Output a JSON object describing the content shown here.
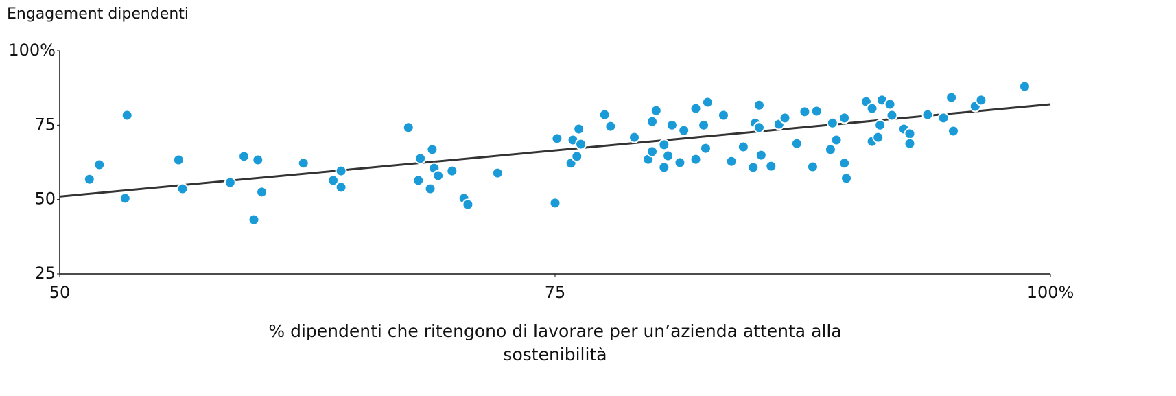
{
  "chart_data": {
    "type": "scatter",
    "ylabel": "Engagement dipendenti",
    "xlabel": "% dipendenti che ritengono di lavorare per un’azienda attenta alla sostenibilità",
    "color": "#1a9bd7",
    "trend_color": "#333333",
    "xlim": [
      50,
      100
    ],
    "ylim": [
      25,
      100
    ],
    "xticks": [
      50,
      75,
      {
        "value": 100,
        "label": "100%"
      }
    ],
    "yticks": [
      25,
      50,
      75,
      {
        "value": 100,
        "label": "100%"
      }
    ],
    "x": [
      51.5,
      52.0,
      53.4,
      53.3,
      56.0,
      56.2,
      58.6,
      59.3,
      60.0,
      59.8,
      60.2,
      62.3,
      63.8,
      64.2,
      64.2,
      67.6,
      68.2,
      68.1,
      68.8,
      68.9,
      69.1,
      68.7,
      69.8,
      70.4,
      70.6,
      72.1,
      75.0,
      75.1,
      75.9,
      75.8,
      76.1,
      76.2,
      76.3,
      77.5,
      77.8,
      79.0,
      79.7,
      79.9,
      79.9,
      80.1,
      80.5,
      80.5,
      80.7,
      80.9,
      81.3,
      81.5,
      82.1,
      82.1,
      82.5,
      82.6,
      82.7,
      83.5,
      83.9,
      84.5,
      85.0,
      85.1,
      85.3,
      85.3,
      85.4,
      85.9,
      86.3,
      86.6,
      87.2,
      87.6,
      88.0,
      88.2,
      88.9,
      89.0,
      89.2,
      89.6,
      89.6,
      89.7,
      90.7,
      91.0,
      91.0,
      91.3,
      91.4,
      91.5,
      91.9,
      92.0,
      92.6,
      92.9,
      92.9,
      93.8,
      94.6,
      95.0,
      95.1,
      96.2,
      96.5,
      98.7
    ],
    "y": [
      56.8,
      61.7,
      78.3,
      50.4,
      63.3,
      53.6,
      55.7,
      64.5,
      63.3,
      43.2,
      52.5,
      62.2,
      56.4,
      59.6,
      54.1,
      74.2,
      63.8,
      56.4,
      66.8,
      60.5,
      58.0,
      53.6,
      59.6,
      50.4,
      48.3,
      58.9,
      48.8,
      70.5,
      70.0,
      62.2,
      64.5,
      73.7,
      68.6,
      78.5,
      74.6,
      70.9,
      63.5,
      66.1,
      76.2,
      79.9,
      68.4,
      60.8,
      64.7,
      75.0,
      62.4,
      73.2,
      63.5,
      80.6,
      75.0,
      67.2,
      82.7,
      78.3,
      62.8,
      67.7,
      60.8,
      75.7,
      81.7,
      74.2,
      64.9,
      61.2,
      75.3,
      77.4,
      68.8,
      79.5,
      61.0,
      79.7,
      66.8,
      75.7,
      70.0,
      77.4,
      62.2,
      57.1,
      82.9,
      80.6,
      69.5,
      70.9,
      75.0,
      83.4,
      82.0,
      78.3,
      73.7,
      72.1,
      68.8,
      78.5,
      77.4,
      84.3,
      73.0,
      81.3,
      83.4,
      88.0
    ],
    "trendline": {
      "x": [
        50,
        100
      ],
      "y": [
        51,
        82
      ]
    }
  }
}
